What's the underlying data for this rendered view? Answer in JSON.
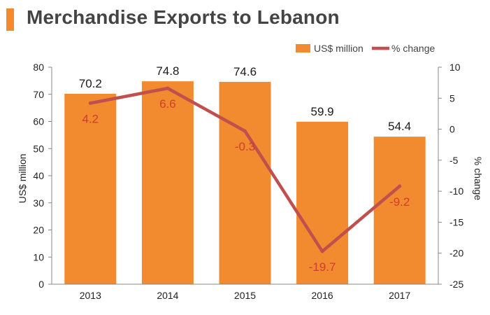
{
  "colors": {
    "bar": "#f28a30",
    "line": "#c0504d",
    "line_label": "#cf3f2b",
    "accent": "#f28a30",
    "title": "#444444"
  },
  "chart_data": {
    "type": "bar",
    "title": "Merchandise Exports to Lebanon",
    "categories": [
      "2013",
      "2014",
      "2015",
      "2016",
      "2017"
    ],
    "series": [
      {
        "name": "US$ million",
        "type": "bar",
        "axis": "left",
        "values": [
          70.2,
          74.8,
          74.6,
          59.9,
          54.4
        ]
      },
      {
        "name": "% change",
        "type": "line",
        "axis": "right",
        "values": [
          4.2,
          6.6,
          -0.3,
          -19.7,
          -9.2
        ]
      }
    ],
    "ylabel": "US$ million",
    "ylim": [
      0,
      80
    ],
    "yticks": [
      "0",
      "10",
      "20",
      "30",
      "40",
      "50",
      "60",
      "70",
      "80"
    ],
    "y2label": "% change",
    "y2lim": [
      -25,
      10
    ],
    "y2ticks": [
      "10",
      "5",
      "0",
      "-5",
      "-10",
      "-15",
      "-20",
      "-25"
    ],
    "legend_position": "top-right",
    "grid": false
  }
}
